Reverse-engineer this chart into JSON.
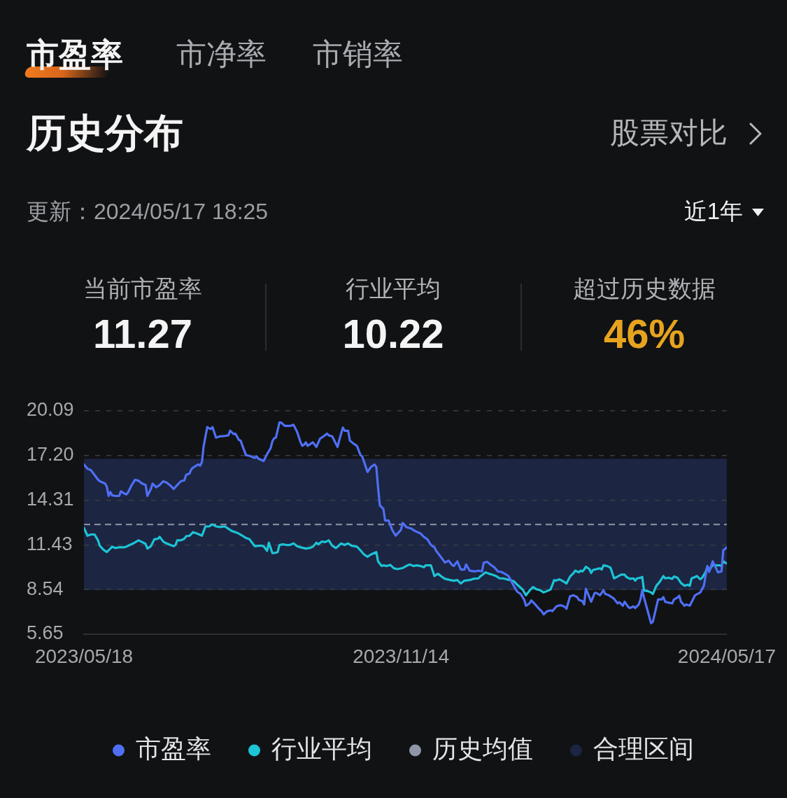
{
  "chart_data": {
    "type": "line",
    "title": "历史分布",
    "subtitle": "更新：2024/05/17 18:25",
    "annotations": [
      "市盈率",
      "市净率",
      "市销率",
      "股票对比",
      "近1年",
      "当前市盈率",
      "11.27",
      "行业平均",
      "10.22",
      "超过历史数据",
      "46%"
    ],
    "xlim": [
      "2023-05-18",
      "2024-05-17"
    ],
    "xticks": [
      {
        "value": "2023-05-18",
        "label": "2023/05/18"
      },
      {
        "value": "2023-11-14",
        "label": "2023/11/14"
      },
      {
        "value": "2024-05-17",
        "label": "2024/05/17"
      }
    ],
    "ylim": [
      5.65,
      20.09
    ],
    "yticks": [
      5.65,
      8.54,
      11.43,
      14.31,
      {
        "value": 17.2,
        "label": "17.20"
      },
      20.09
    ],
    "grid": "y",
    "legend": "bottom",
    "marker": "none",
    "ref_lines": [
      {
        "axis": "y",
        "value": 12.75,
        "label": "历史均值",
        "color": "#8e96a8",
        "line_style": "dashed"
      }
    ],
    "bands": [
      {
        "axis": "y",
        "from": 8.5,
        "to": 17.0,
        "label": "合理区间",
        "color": "#1c2541"
      }
    ],
    "series": [
      {
        "name": "市盈率",
        "color": "#4f6ff5",
        "x": [
          "2023-05-18",
          "2023-05-20",
          "2023-05-22",
          "2023-05-24",
          "2023-05-26",
          "2023-05-27",
          "2023-05-30",
          "2023-05-31",
          "2023-06-01",
          "2023-06-02",
          "2023-06-03",
          "2023-06-05",
          "2023-06-07",
          "2023-06-08",
          "2023-06-10",
          "2023-06-11",
          "2023-06-12",
          "2023-06-14",
          "2023-06-16",
          "2023-06-18",
          "2023-06-20",
          "2023-06-22",
          "2023-06-23",
          "2023-06-25",
          "2023-06-26",
          "2023-06-28",
          "2023-06-30",
          "2023-07-02",
          "2023-07-04",
          "2023-07-06",
          "2023-07-08",
          "2023-07-10",
          "2023-07-12",
          "2023-07-14",
          "2023-07-15",
          "2023-07-17",
          "2023-07-18",
          "2023-07-20",
          "2023-07-22",
          "2023-07-23",
          "2023-07-24",
          "2023-07-25",
          "2023-07-27",
          "2023-07-28",
          "2023-07-29",
          "2023-07-30",
          "2023-08-01",
          "2023-08-03",
          "2023-08-06",
          "2023-08-08",
          "2023-08-09",
          "2023-08-11",
          "2023-08-12",
          "2023-08-14",
          "2023-08-15",
          "2023-08-16",
          "2023-08-18",
          "2023-08-20",
          "2023-08-23",
          "2023-08-24",
          "2023-08-25",
          "2023-08-28",
          "2023-08-30",
          "2023-09-01",
          "2023-09-02",
          "2023-09-03",
          "2023-09-04",
          "2023-09-06",
          "2023-09-07",
          "2023-09-09",
          "2023-09-12",
          "2023-09-14",
          "2023-09-16",
          "2023-09-18",
          "2023-09-19",
          "2023-09-20",
          "2023-09-21",
          "2023-09-22",
          "2023-09-25",
          "2023-09-27",
          "2023-09-29",
          "2023-10-01",
          "2023-10-03",
          "2023-10-04",
          "2023-10-06",
          "2023-10-09",
          "2023-10-10",
          "2023-10-12",
          "2023-10-13",
          "2023-10-15",
          "2023-10-16",
          "2023-10-18",
          "2023-10-20",
          "2023-10-22",
          "2023-10-23",
          "2023-10-26",
          "2023-10-28",
          "2023-10-30",
          "2023-10-31",
          "2023-11-01",
          "2023-11-02",
          "2023-11-04",
          "2023-11-05",
          "2023-11-07",
          "2023-11-09",
          "2023-11-11",
          "2023-11-14",
          "2023-11-15",
          "2023-11-17",
          "2023-11-20",
          "2023-11-22",
          "2023-11-25",
          "2023-11-27",
          "2023-11-29",
          "2023-12-01",
          "2023-12-03",
          "2023-12-04",
          "2023-12-06",
          "2023-12-08",
          "2023-12-09",
          "2023-12-11",
          "2023-12-13",
          "2023-12-14",
          "2023-12-16",
          "2023-12-18",
          "2023-12-20",
          "2023-12-21",
          "2023-12-23",
          "2023-12-26",
          "2023-12-28",
          "2023-12-30",
          "2023-12-31",
          "2024-01-02",
          "2024-01-04",
          "2024-01-06",
          "2024-01-08",
          "2024-01-10",
          "2024-01-12",
          "2024-01-14",
          "2024-01-15",
          "2024-01-17",
          "2024-01-19",
          "2024-01-21",
          "2024-01-23",
          "2024-01-24",
          "2024-01-26",
          "2024-01-27",
          "2024-01-29",
          "2024-01-31",
          "2024-02-02",
          "2024-02-03",
          "2024-02-05",
          "2024-02-07",
          "2024-02-08",
          "2024-02-10",
          "2024-02-11",
          "2024-02-13",
          "2024-02-15",
          "2024-02-16",
          "2024-02-18",
          "2024-02-20",
          "2024-02-22",
          "2024-02-23",
          "2024-02-25",
          "2024-02-26",
          "2024-02-27",
          "2024-02-28",
          "2024-03-01",
          "2024-03-03",
          "2024-03-04",
          "2024-03-06",
          "2024-03-08",
          "2024-03-09",
          "2024-03-11",
          "2024-03-13",
          "2024-03-14",
          "2024-03-16",
          "2024-03-17",
          "2024-03-19",
          "2024-03-20",
          "2024-03-22",
          "2024-03-23",
          "2024-03-25",
          "2024-03-26",
          "2024-03-28",
          "2024-03-29",
          "2024-03-30",
          "2024-03-31",
          "2024-04-02",
          "2024-04-04",
          "2024-04-05",
          "2024-04-07",
          "2024-04-08",
          "2024-04-10",
          "2024-04-11",
          "2024-04-12",
          "2024-04-14",
          "2024-04-16",
          "2024-04-17",
          "2024-04-19",
          "2024-04-20",
          "2024-04-21",
          "2024-04-23",
          "2024-04-24",
          "2024-04-26",
          "2024-04-27",
          "2024-04-29",
          "2024-05-01",
          "2024-05-02",
          "2024-05-04",
          "2024-05-05",
          "2024-05-06",
          "2024-05-07",
          "2024-05-09",
          "2024-05-10",
          "2024-05-12",
          "2024-05-14",
          "2024-05-15",
          "2024-05-17"
        ],
        "values": [
          16.63,
          16.35,
          16.25,
          15.95,
          15.64,
          15.54,
          15.39,
          15.19,
          14.59,
          14.84,
          14.63,
          14.59,
          14.59,
          14.89,
          14.74,
          14.69,
          14.81,
          15.27,
          15.64,
          15.57,
          15.39,
          15.3,
          14.59,
          15.04,
          15.39,
          15.15,
          15.3,
          15.54,
          15.45,
          15.27,
          15.04,
          15.3,
          15.54,
          15.6,
          15.95,
          16.05,
          16.32,
          16.5,
          16.63,
          16.55,
          16.78,
          17.83,
          19.04,
          18.97,
          18.92,
          19.04,
          18.36,
          18.44,
          18.47,
          18.51,
          18.81,
          18.59,
          18.62,
          18.21,
          18.17,
          17.83,
          17.23,
          17.18,
          17.05,
          17.15,
          17.0,
          16.85,
          17.3,
          17.68,
          18.13,
          18.32,
          18.36,
          19.34,
          19.34,
          19.12,
          19.12,
          19.19,
          18.74,
          18.06,
          17.83,
          17.91,
          18.06,
          17.83,
          18.06,
          17.76,
          18.29,
          18.44,
          18.62,
          18.51,
          18.44,
          17.76,
          18.21,
          19.01,
          18.81,
          18.81,
          18.17,
          17.98,
          17.83,
          17.23,
          17.15,
          16.14,
          16.47,
          16.62,
          16.47,
          15.12,
          13.98,
          13.76,
          13.0,
          13.0,
          12.4,
          12.02,
          12.4,
          12.85,
          12.58,
          12.47,
          12.32,
          12.17,
          11.95,
          11.79,
          11.42,
          11.27,
          11.04,
          10.74,
          10.44,
          10.28,
          10.41,
          10.13,
          10.06,
          10.36,
          9.83,
          9.83,
          10.16,
          9.76,
          9.71,
          9.76,
          9.71,
          10.28,
          10.33,
          10.13,
          9.98,
          9.71,
          9.68,
          9.56,
          9.41,
          9.23,
          8.78,
          8.4,
          8.25,
          7.87,
          7.49,
          7.64,
          7.84,
          7.6,
          7.34,
          7.11,
          6.93,
          7.14,
          7.19,
          7.14,
          7.42,
          7.49,
          7.52,
          7.42,
          7.3,
          8.1,
          8.17,
          8.05,
          7.87,
          7.79,
          7.57,
          8.59,
          8.32,
          7.75,
          8.32,
          8.32,
          8.17,
          8.5,
          8.25,
          8.17,
          8.02,
          7.94,
          7.64,
          7.72,
          7.49,
          7.75,
          7.42,
          7.34,
          7.45,
          7.34,
          7.57,
          7.9,
          8.5,
          8.02,
          7.19,
          6.36,
          6.44,
          7.42,
          7.9,
          7.9,
          8.05,
          7.75,
          7.69,
          7.64,
          7.9,
          8.02,
          8.14,
          7.75,
          7.49,
          7.57,
          7.49,
          7.72,
          8.17,
          8.29,
          8.35,
          8.78,
          9.45,
          10.06,
          9.68,
          10.36,
          10.13,
          9.65,
          9.71,
          11.07,
          11.27
        ]
      },
      {
        "name": "行业平均",
        "color": "#1cc4d6",
        "x": [
          "2023-05-18",
          "2023-05-20",
          "2023-05-22",
          "2023-05-24",
          "2023-05-26",
          "2023-05-27",
          "2023-05-29",
          "2023-05-31",
          "2023-06-02",
          "2023-06-03",
          "2023-06-05",
          "2023-06-07",
          "2023-06-10",
          "2023-06-11",
          "2023-06-13",
          "2023-06-15",
          "2023-06-18",
          "2023-06-20",
          "2023-06-22",
          "2023-06-23",
          "2023-06-25",
          "2023-06-27",
          "2023-06-29",
          "2023-06-30",
          "2023-07-02",
          "2023-07-03",
          "2023-07-06",
          "2023-07-08",
          "2023-07-09",
          "2023-07-10",
          "2023-07-12",
          "2023-07-14",
          "2023-07-15",
          "2023-07-17",
          "2023-07-19",
          "2023-07-21",
          "2023-07-24",
          "2023-07-26",
          "2023-07-28",
          "2023-07-30",
          "2023-08-01",
          "2023-08-03",
          "2023-08-06",
          "2023-08-08",
          "2023-08-10",
          "2023-08-12",
          "2023-08-14",
          "2023-08-16",
          "2023-08-18",
          "2023-08-20",
          "2023-08-21",
          "2023-08-23",
          "2023-08-25",
          "2023-08-27",
          "2023-08-28",
          "2023-08-30",
          "2023-08-31",
          "2023-09-02",
          "2023-09-04",
          "2023-09-05",
          "2023-09-06",
          "2023-09-08",
          "2023-09-10",
          "2023-09-12",
          "2023-09-14",
          "2023-09-16",
          "2023-09-18",
          "2023-09-21",
          "2023-09-23",
          "2023-09-25",
          "2023-09-27",
          "2023-09-28",
          "2023-09-30",
          "2023-10-02",
          "2023-10-04",
          "2023-10-06",
          "2023-10-08",
          "2023-10-09",
          "2023-10-11",
          "2023-10-13",
          "2023-10-15",
          "2023-10-17",
          "2023-10-20",
          "2023-10-22",
          "2023-10-24",
          "2023-10-26",
          "2023-10-28",
          "2023-10-31",
          "2023-11-01",
          "2023-11-03",
          "2023-11-04",
          "2023-11-06",
          "2023-11-08",
          "2023-11-10",
          "2023-11-12",
          "2023-11-15",
          "2023-11-17",
          "2023-11-19",
          "2023-11-21",
          "2023-11-23",
          "2023-11-25",
          "2023-11-27",
          "2023-11-28",
          "2023-12-01",
          "2023-12-03",
          "2023-12-05",
          "2023-12-07",
          "2023-12-09",
          "2023-12-12",
          "2023-12-14",
          "2023-12-16",
          "2023-12-18",
          "2023-12-20",
          "2023-12-23",
          "2023-12-25",
          "2023-12-28",
          "2023-12-29",
          "2024-01-01",
          "2024-01-03",
          "2024-01-05",
          "2024-01-07",
          "2024-01-09",
          "2024-01-11",
          "2024-01-13",
          "2024-01-15",
          "2024-01-17",
          "2024-01-19",
          "2024-01-22",
          "2024-01-24",
          "2024-01-26",
          "2024-01-28",
          "2024-01-30",
          "2024-02-01",
          "2024-02-03",
          "2024-02-05",
          "2024-02-07",
          "2024-02-09",
          "2024-02-10",
          "2024-02-12",
          "2024-02-14",
          "2024-02-16",
          "2024-02-18",
          "2024-02-20",
          "2024-02-21",
          "2024-02-23",
          "2024-02-24",
          "2024-02-25",
          "2024-02-26",
          "2024-02-27",
          "2024-02-29",
          "2024-03-01",
          "2024-03-02",
          "2024-03-04",
          "2024-03-06",
          "2024-03-07",
          "2024-03-08",
          "2024-03-10",
          "2024-03-12",
          "2024-03-14",
          "2024-03-16",
          "2024-03-18",
          "2024-03-20",
          "2024-03-21",
          "2024-03-23",
          "2024-03-25",
          "2024-03-26",
          "2024-03-27",
          "2024-03-29",
          "2024-03-30",
          "2024-03-31",
          "2024-04-02",
          "2024-04-04",
          "2024-04-05",
          "2024-04-07",
          "2024-04-09",
          "2024-04-11",
          "2024-04-12",
          "2024-04-14",
          "2024-04-16",
          "2024-04-17",
          "2024-04-19",
          "2024-04-21",
          "2024-04-23",
          "2024-04-25",
          "2024-04-26",
          "2024-04-27",
          "2024-04-29",
          "2024-04-30",
          "2024-05-02",
          "2024-05-03",
          "2024-05-05",
          "2024-05-06",
          "2024-05-07",
          "2024-05-09",
          "2024-05-11",
          "2024-05-13",
          "2024-05-14",
          "2024-05-15",
          "2024-05-17"
        ],
        "values": [
          12.52,
          12.02,
          12.1,
          12.1,
          11.72,
          11.37,
          11.12,
          10.96,
          11.19,
          11.31,
          11.22,
          11.27,
          11.27,
          11.31,
          11.42,
          11.52,
          11.72,
          11.61,
          11.49,
          11.19,
          11.34,
          11.79,
          11.82,
          11.95,
          11.64,
          11.57,
          11.42,
          11.34,
          11.42,
          11.72,
          11.72,
          11.82,
          11.98,
          12.02,
          12.25,
          12.17,
          12.02,
          12.62,
          12.62,
          12.75,
          12.62,
          12.58,
          12.62,
          12.47,
          12.32,
          12.25,
          12.15,
          12.02,
          11.87,
          11.79,
          11.64,
          11.34,
          11.37,
          11.37,
          11.34,
          11.04,
          11.57,
          10.89,
          10.92,
          10.96,
          11.42,
          11.46,
          11.42,
          11.42,
          11.52,
          11.34,
          11.27,
          11.19,
          11.22,
          11.31,
          11.57,
          11.46,
          11.64,
          11.61,
          11.72,
          11.37,
          11.22,
          11.31,
          11.52,
          11.42,
          11.52,
          11.37,
          11.31,
          11.07,
          10.81,
          10.66,
          10.81,
          10.96,
          10.36,
          10.06,
          10.1,
          10.06,
          10.13,
          9.91,
          9.86,
          9.93,
          10.06,
          10.16,
          10.06,
          10.1,
          10.06,
          9.98,
          10.1,
          10.1,
          9.41,
          9.56,
          9.38,
          9.23,
          9.15,
          9.11,
          9.15,
          8.93,
          9.11,
          9.15,
          9.23,
          9.26,
          9.38,
          9.65,
          9.56,
          9.5,
          9.41,
          9.26,
          9.26,
          9.2,
          9.15,
          9.08,
          8.85,
          8.55,
          8.17,
          8.47,
          8.7,
          8.55,
          8.5,
          8.35,
          8.44,
          8.55,
          9.15,
          9.11,
          9.2,
          9.08,
          8.93,
          9.38,
          9.61,
          9.76,
          9.65,
          9.76,
          9.71,
          9.83,
          10.01,
          9.86,
          9.61,
          9.8,
          9.86,
          9.91,
          9.83,
          10.1,
          10.06,
          9.95,
          9.26,
          9.38,
          9.5,
          9.5,
          9.35,
          9.23,
          9.26,
          9.11,
          9.26,
          9.3,
          9.35,
          8.47,
          8.44,
          8.35,
          8.25,
          8.78,
          9.05,
          9.41,
          9.26,
          9.3,
          9.23,
          9.38,
          9.3,
          8.96,
          8.78,
          8.85,
          8.78,
          9.26,
          9.35,
          9.41,
          9.2,
          9.3,
          9.68,
          10.01,
          9.76,
          10.13,
          10.1,
          10.1,
          10.06,
          10.36,
          10.22
        ]
      }
    ]
  }
}
